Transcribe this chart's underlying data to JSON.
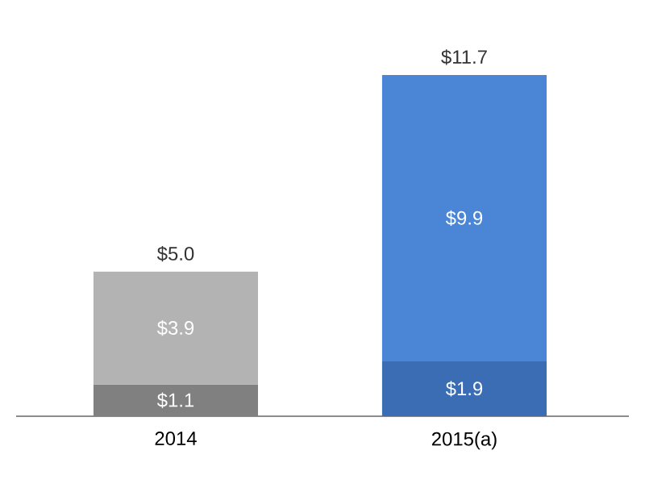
{
  "chart_data": {
    "type": "bar",
    "stacked": true,
    "data_labels": true,
    "categories": [
      "2014",
      "2015(a)"
    ],
    "series": [
      {
        "colors": [
          "#808080",
          "#3a6db4"
        ],
        "values": [
          1.1,
          1.9
        ],
        "value_labels": [
          "$1.1",
          "$1.9"
        ]
      },
      {
        "colors": [
          "#b3b3b3",
          "#4a85d6"
        ],
        "values": [
          3.9,
          9.9
        ],
        "value_labels": [
          "$3.9",
          "$9.9"
        ]
      }
    ],
    "totals": [
      "$5.0",
      "$11.7"
    ]
  }
}
